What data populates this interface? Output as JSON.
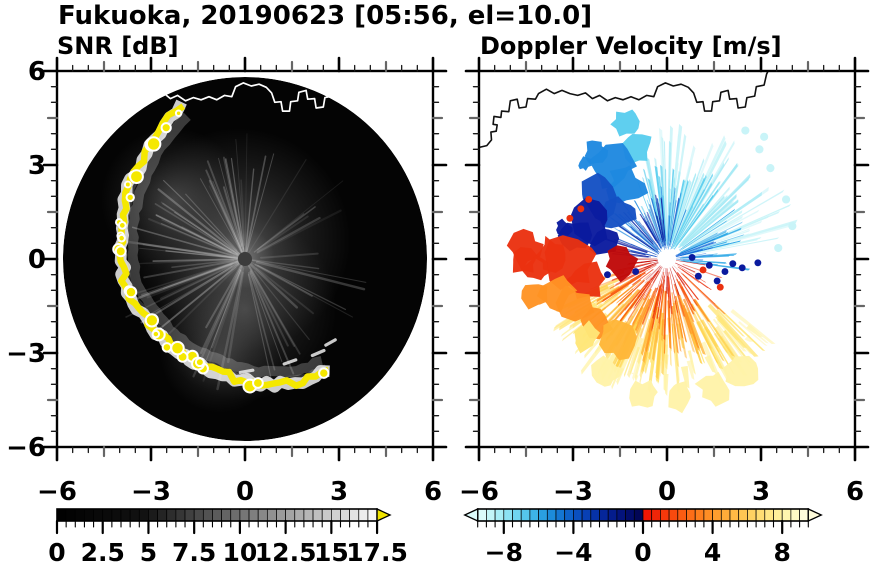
{
  "title": "Fukuoka, 20190623 [05:56, el=10.0]",
  "colors": {
    "frame": "#000000",
    "background": "#ffffff",
    "axis_mid_tick": "#666666",
    "scan_background": "#040404",
    "front_color": "#f5e800",
    "coast_left": "#ffffff",
    "coast_right": "#111111",
    "radar_dot_left": "#3c3c3c",
    "radar_dot_right": "#ffffff"
  },
  "axes": {
    "range": [
      -6,
      6
    ],
    "minor_step": 0.5,
    "x_major": [
      -6,
      -3,
      0,
      3,
      6
    ],
    "x_labels": [
      "−6",
      "−3",
      "0",
      "3",
      "6"
    ],
    "y_major": [
      6,
      3,
      0,
      -3,
      -6
    ],
    "y_labels": [
      "6",
      "3",
      "0",
      "−3",
      "−6"
    ]
  },
  "coastline": [
    [
      -6.05,
      3.55
    ],
    [
      -5.75,
      3.62
    ],
    [
      -5.6,
      3.8
    ],
    [
      -5.62,
      4.05
    ],
    [
      -5.45,
      4.08
    ],
    [
      -5.42,
      4.28
    ],
    [
      -5.55,
      4.3
    ],
    [
      -5.52,
      4.55
    ],
    [
      -5.3,
      4.52
    ],
    [
      -5.28,
      4.72
    ],
    [
      -5.05,
      4.7
    ],
    [
      -5.0,
      5.05
    ],
    [
      -4.78,
      5.1
    ],
    [
      -4.72,
      4.82
    ],
    [
      -4.5,
      4.85
    ],
    [
      -4.45,
      5.12
    ],
    [
      -4.2,
      5.1
    ],
    [
      -4.1,
      5.28
    ],
    [
      -3.85,
      5.42
    ],
    [
      -3.6,
      5.28
    ],
    [
      -3.35,
      5.38
    ],
    [
      -3.1,
      5.28
    ],
    [
      -2.85,
      5.22
    ],
    [
      -2.6,
      5.3
    ],
    [
      -2.38,
      5.12
    ],
    [
      -2.15,
      5.22
    ],
    [
      -1.9,
      5.05
    ],
    [
      -1.65,
      5.15
    ],
    [
      -1.4,
      5.08
    ],
    [
      -1.15,
      5.18
    ],
    [
      -0.9,
      5.08
    ],
    [
      -0.65,
      5.22
    ],
    [
      -0.42,
      5.18
    ],
    [
      -0.3,
      5.5
    ],
    [
      -0.05,
      5.62
    ],
    [
      0.2,
      5.52
    ],
    [
      0.45,
      5.58
    ],
    [
      0.68,
      5.48
    ],
    [
      0.85,
      5.3
    ],
    [
      0.95,
      5.0
    ],
    [
      1.15,
      5.02
    ],
    [
      1.2,
      4.72
    ],
    [
      1.42,
      4.72
    ],
    [
      1.46,
      5.02
    ],
    [
      1.68,
      5.05
    ],
    [
      1.72,
      5.32
    ],
    [
      1.95,
      5.38
    ],
    [
      2.0,
      5.1
    ],
    [
      2.22,
      5.12
    ],
    [
      2.27,
      4.82
    ],
    [
      2.5,
      4.85
    ],
    [
      2.55,
      5.15
    ],
    [
      2.8,
      5.2
    ],
    [
      2.85,
      5.5
    ],
    [
      3.1,
      5.55
    ],
    [
      3.18,
      5.9
    ],
    [
      3.3,
      6.15
    ]
  ],
  "chart_data": [
    {
      "type": "heatmap",
      "variant": "radar_ppi_scan",
      "title": "SNR [dB]",
      "x_range": [
        -6,
        6
      ],
      "y_range": [
        -6,
        6
      ],
      "scan_radius": 5.8,
      "colorbar": {
        "min": 0,
        "max": 17.5,
        "cell_step": 0.5,
        "minor_step": 0.5,
        "tick_values": [
          0,
          2.5,
          5,
          7.5,
          10,
          12.5,
          15,
          17.5
        ],
        "tick_labels": [
          "0",
          "2.5",
          "5",
          "7.5",
          "10",
          "12.5",
          "15",
          "17.5"
        ],
        "overflow_right": "#f0e400",
        "cells": [
          "#010101",
          "#030303",
          "#050505",
          "#070707",
          "#090909",
          "#0a0a0a",
          "#0c0c0c",
          "#0e0e0e",
          "#101010",
          "#121212",
          "#1b1b1b",
          "#242424",
          "#2d2d2d",
          "#363636",
          "#404040",
          "#494949",
          "#525252",
          "#5b5b5b",
          "#646464",
          "#6d6d6d",
          "#767676",
          "#7f7f7f",
          "#888888",
          "#919191",
          "#9b9b9b",
          "#a4a4a4",
          "#adadad",
          "#b6b6b6",
          "#bfbfbf",
          "#c8c8c8",
          "#d1d1d1",
          "#dadada",
          "#e3e3e3",
          "#ededed",
          "#f6f6f6"
        ]
      },
      "front_arc": [
        [
          112,
          5.3
        ],
        [
          124,
          4.9
        ],
        [
          138,
          4.52
        ],
        [
          155,
          4.22
        ],
        [
          172,
          4.0
        ],
        [
          194,
          3.88
        ],
        [
          214,
          3.66
        ],
        [
          237,
          3.64
        ],
        [
          261,
          3.74
        ],
        [
          282,
          4.08
        ],
        [
          298,
          4.35
        ],
        [
          308,
          4.42
        ]
      ],
      "bright_dashes": [
        [
          1.25,
          -3.35,
          1.62,
          -3.22
        ],
        [
          2.15,
          -3.08,
          2.52,
          -2.92
        ],
        [
          2.58,
          -2.75,
          2.88,
          -2.58
        ],
        [
          -0.15,
          -3.62,
          0.25,
          -3.55
        ]
      ]
    },
    {
      "type": "heatmap",
      "variant": "radar_ppi_scan",
      "title": "Doppler Velocity [m/s]",
      "x_range": [
        -6,
        6
      ],
      "y_range": [
        -6,
        6
      ],
      "colorbar": {
        "min": -9.5,
        "max": 9.5,
        "cell_step": 0.5,
        "minor_step": 0.5,
        "tick_values": [
          -8,
          -4,
          0,
          4,
          8
        ],
        "tick_labels": [
          "−8",
          "−4",
          "0",
          "4",
          "8"
        ],
        "overflow_left": "#dcfbfa",
        "overflow_right": "#fffcdb",
        "cells": [
          "#dbfbfa",
          "#c3f5f7",
          "#a8edf5",
          "#8ce2f3",
          "#70d5f0",
          "#55c6ec",
          "#3db4e7",
          "#2aa0e1",
          "#1c8bda",
          "#1476d2",
          "#0e62c9",
          "#0a4fbf",
          "#0840b4",
          "#0632a8",
          "#05269a",
          "#041c8c",
          "#03137c",
          "#020c6a",
          "#020656",
          "#f01604",
          "#f02508",
          "#f5380b",
          "#f84a0e",
          "#fb5c12",
          "#fd6d17",
          "#fe7e1d",
          "#ff8e25",
          "#ff9d2e",
          "#ffab39",
          "#ffb945",
          "#ffc653",
          "#ffd262",
          "#ffdd73",
          "#ffe786",
          "#ffef9a",
          "#fff5af",
          "#fff9c5",
          "#fffcdb"
        ]
      },
      "fans": [
        {
          "color": "#c9f4f8",
          "a0": 10,
          "a1": 95,
          "r0": 0.7,
          "r1": 4.35,
          "n": 48
        },
        {
          "color": "#9fe8f4",
          "a0": 34,
          "a1": 104,
          "r0": 0.55,
          "r1": 3.8,
          "n": 36
        },
        {
          "color": "#58cdee",
          "a0": 50,
          "a1": 118,
          "r0": 0.45,
          "r1": 3.1,
          "n": 30
        },
        {
          "color": "#2aa6e6",
          "a0": -8,
          "a1": 38,
          "r0": 0.4,
          "r1": 2.7,
          "n": 20
        },
        {
          "color": "#1e88e0",
          "a0": 62,
          "a1": 150,
          "r0": 0.35,
          "r1": 2.4,
          "n": 26
        },
        {
          "color": "#1565d8",
          "a0": -5,
          "a1": 25,
          "r0": 0.3,
          "r1": 1.7,
          "n": 12
        },
        {
          "color": "#1450c4",
          "a0": 78,
          "a1": 168,
          "r0": 0.35,
          "r1": 2.0,
          "n": 20
        },
        {
          "color": "#0a1a9e",
          "a0": 95,
          "a1": 177,
          "r0": 0.55,
          "r1": 2.1,
          "n": 22
        },
        {
          "color": "#fff3a9",
          "a0": 214,
          "a1": 322,
          "r0": 2.95,
          "r1": 4.6,
          "n": 40
        },
        {
          "color": "#ffe678",
          "a0": 208,
          "a1": 318,
          "r0": 2.4,
          "r1": 4.3,
          "n": 42
        },
        {
          "color": "#ffd24f",
          "a0": 203,
          "a1": 306,
          "r0": 1.9,
          "r1": 3.95,
          "n": 36
        },
        {
          "color": "#ffb638",
          "a0": 200,
          "a1": 292,
          "r0": 1.5,
          "r1": 3.4,
          "n": 30
        },
        {
          "color": "#ff9323",
          "a0": 196,
          "a1": 310,
          "r0": 1.2,
          "r1": 3.05,
          "n": 30
        },
        {
          "color": "#f85c12",
          "a0": 190,
          "a1": 326,
          "r0": 0.8,
          "r1": 2.6,
          "n": 28
        },
        {
          "color": "#ea3110",
          "a0": 183,
          "a1": 342,
          "r0": 0.45,
          "r1": 2.0,
          "n": 32
        },
        {
          "color": "#c00808",
          "a0": 178,
          "a1": 354,
          "r0": 0.25,
          "r1": 1.25,
          "n": 30
        }
      ],
      "blobs": [
        {
          "c": "#58cdee",
          "x": -1.35,
          "y": 4.35,
          "r": 0.42
        },
        {
          "c": "#58cdee",
          "x": -1.0,
          "y": 3.55,
          "r": 0.5
        },
        {
          "c": "#1e88e0",
          "x": -1.75,
          "y": 2.95,
          "r": 0.75
        },
        {
          "c": "#1e88e0",
          "x": -1.3,
          "y": 2.3,
          "r": 0.6
        },
        {
          "c": "#1e88e0",
          "x": -2.3,
          "y": 3.35,
          "r": 0.38
        },
        {
          "c": "#1e88e0",
          "x": -2.62,
          "y": 3.05,
          "r": 0.2
        },
        {
          "c": "#1450c4",
          "x": -2.1,
          "y": 1.95,
          "r": 0.7
        },
        {
          "c": "#1450c4",
          "x": -1.55,
          "y": 1.45,
          "r": 0.55
        },
        {
          "c": "#0a1a9e",
          "x": -2.45,
          "y": 1.15,
          "r": 0.68
        },
        {
          "c": "#0a1a9e",
          "x": -2.92,
          "y": 0.75,
          "r": 0.5
        },
        {
          "c": "#0a1a9e",
          "x": -2.0,
          "y": 0.6,
          "r": 0.48
        },
        {
          "c": "#0a1a9e",
          "x": -3.32,
          "y": 0.98,
          "r": 0.26
        },
        {
          "c": "#c00808",
          "x": -1.5,
          "y": -0.15,
          "r": 0.5
        },
        {
          "c": "#ea3110",
          "x": -3.05,
          "y": -0.1,
          "r": 0.8
        },
        {
          "c": "#ea3110",
          "x": -3.7,
          "y": 0.15,
          "r": 0.5
        },
        {
          "c": "#ea3110",
          "x": -4.5,
          "y": 0.3,
          "r": 0.55
        },
        {
          "c": "#ea3110",
          "x": -4.55,
          "y": -0.1,
          "r": 0.4
        },
        {
          "c": "#ea3110",
          "x": -4.15,
          "y": -0.3,
          "r": 0.45
        },
        {
          "c": "#ea3110",
          "x": -2.55,
          "y": -0.7,
          "r": 0.6
        },
        {
          "c": "#ff9323",
          "x": -3.55,
          "y": -1.05,
          "r": 0.55
        },
        {
          "c": "#ff9323",
          "x": -4.2,
          "y": -1.2,
          "r": 0.4
        },
        {
          "c": "#ff9323",
          "x": -3.0,
          "y": -1.5,
          "r": 0.6
        },
        {
          "c": "#ff9323",
          "x": -2.3,
          "y": -2.05,
          "r": 0.55
        },
        {
          "c": "#ffb638",
          "x": -1.55,
          "y": -2.6,
          "r": 0.6
        },
        {
          "c": "#ffe678",
          "x": -2.6,
          "y": -2.5,
          "r": 0.45
        },
        {
          "c": "#fff3a9",
          "x": 0.4,
          "y": -4.35,
          "r": 0.5
        },
        {
          "c": "#fff3a9",
          "x": 1.5,
          "y": -4.1,
          "r": 0.5
        },
        {
          "c": "#fff3a9",
          "x": -0.75,
          "y": -4.3,
          "r": 0.45
        },
        {
          "c": "#fff3a9",
          "x": 2.35,
          "y": -3.6,
          "r": 0.5
        },
        {
          "c": "#fff3a9",
          "x": -1.9,
          "y": -3.6,
          "r": 0.45
        }
      ],
      "speckles": [
        {
          "c": "#0a1a9e",
          "r": 0.11,
          "pts": [
            [
              1.35,
              -0.2
            ],
            [
              1.85,
              -0.4
            ],
            [
              2.4,
              -0.28
            ],
            [
              1.0,
              -0.55
            ],
            [
              2.9,
              -0.12
            ],
            [
              1.6,
              -0.7
            ],
            [
              2.1,
              -0.15
            ],
            [
              0.8,
              0.05
            ],
            [
              -1.0,
              -0.4
            ],
            [
              -1.9,
              -0.5
            ]
          ]
        },
        {
          "c": "#ea3110",
          "r": 0.11,
          "pts": [
            [
              -2.75,
              1.6
            ],
            [
              -3.1,
              1.3
            ],
            [
              -2.5,
              1.9
            ],
            [
              1.15,
              -0.35
            ],
            [
              1.7,
              -0.9
            ]
          ]
        },
        {
          "c": "#c9f4f8",
          "r": 0.13,
          "pts": [
            [
              3.3,
              2.9
            ],
            [
              3.8,
              1.9
            ],
            [
              2.95,
              3.5
            ],
            [
              4.0,
              1.05
            ],
            [
              3.55,
              0.35
            ],
            [
              3.1,
              3.9
            ],
            [
              2.5,
              4.1
            ]
          ]
        }
      ]
    }
  ]
}
